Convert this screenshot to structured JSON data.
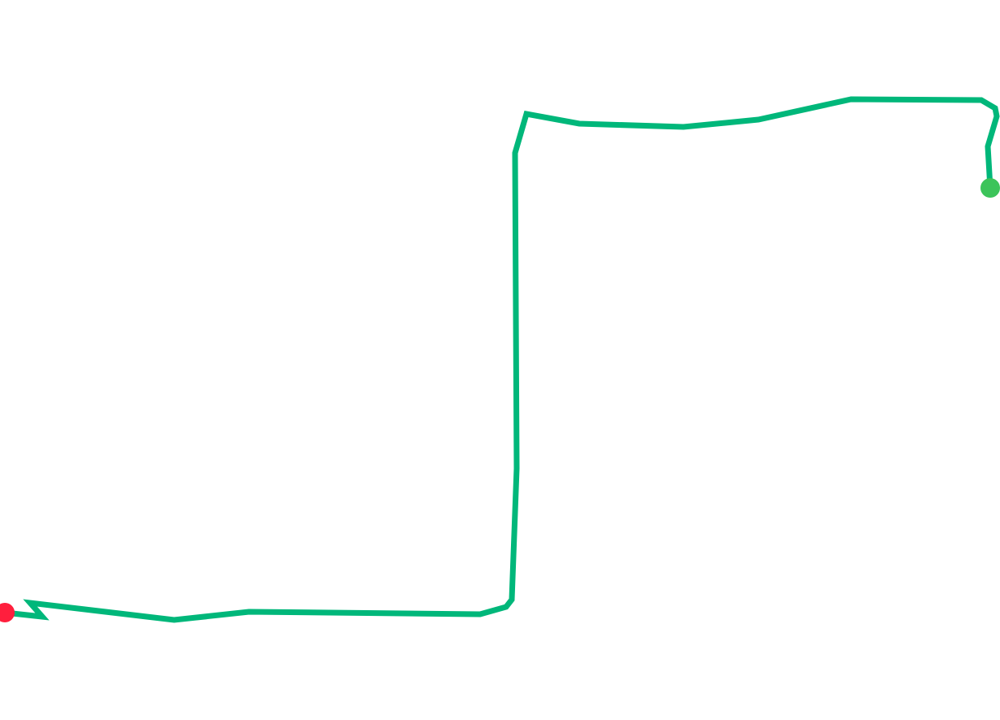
{
  "route": {
    "line_color": "#00b77a",
    "start_marker_color": "#3cc45a",
    "end_marker_color": "#ff1f3d"
  }
}
